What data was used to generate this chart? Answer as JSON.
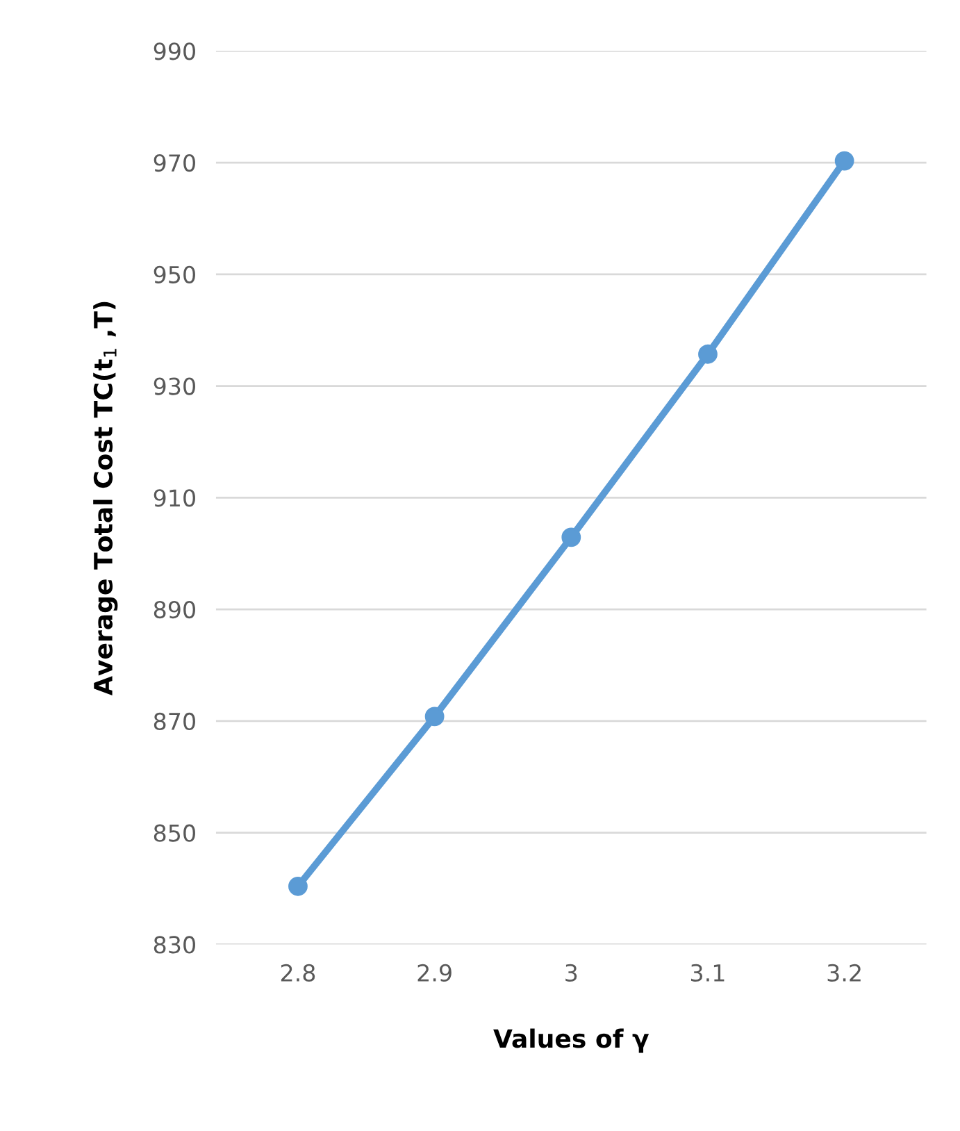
{
  "chart_data": {
    "type": "line",
    "xlabel": "Values of γ",
    "ylabel": "Average Total Cost TC(t$_{1}$ ,T)",
    "categories": [
      "2.8",
      "2.9",
      "3",
      "3.1",
      "3.2"
    ],
    "series": [
      {
        "color": "#5b9bd5",
        "values": [
          840.4,
          870.8,
          902.9,
          935.7,
          970.3
        ]
      }
    ],
    "ylim": [
      830,
      990
    ],
    "yticks": [
      830,
      850,
      870,
      890,
      910,
      930,
      950,
      970,
      990
    ],
    "grid": "y",
    "marker": "circle",
    "line_style": "solid",
    "legend": false
  }
}
